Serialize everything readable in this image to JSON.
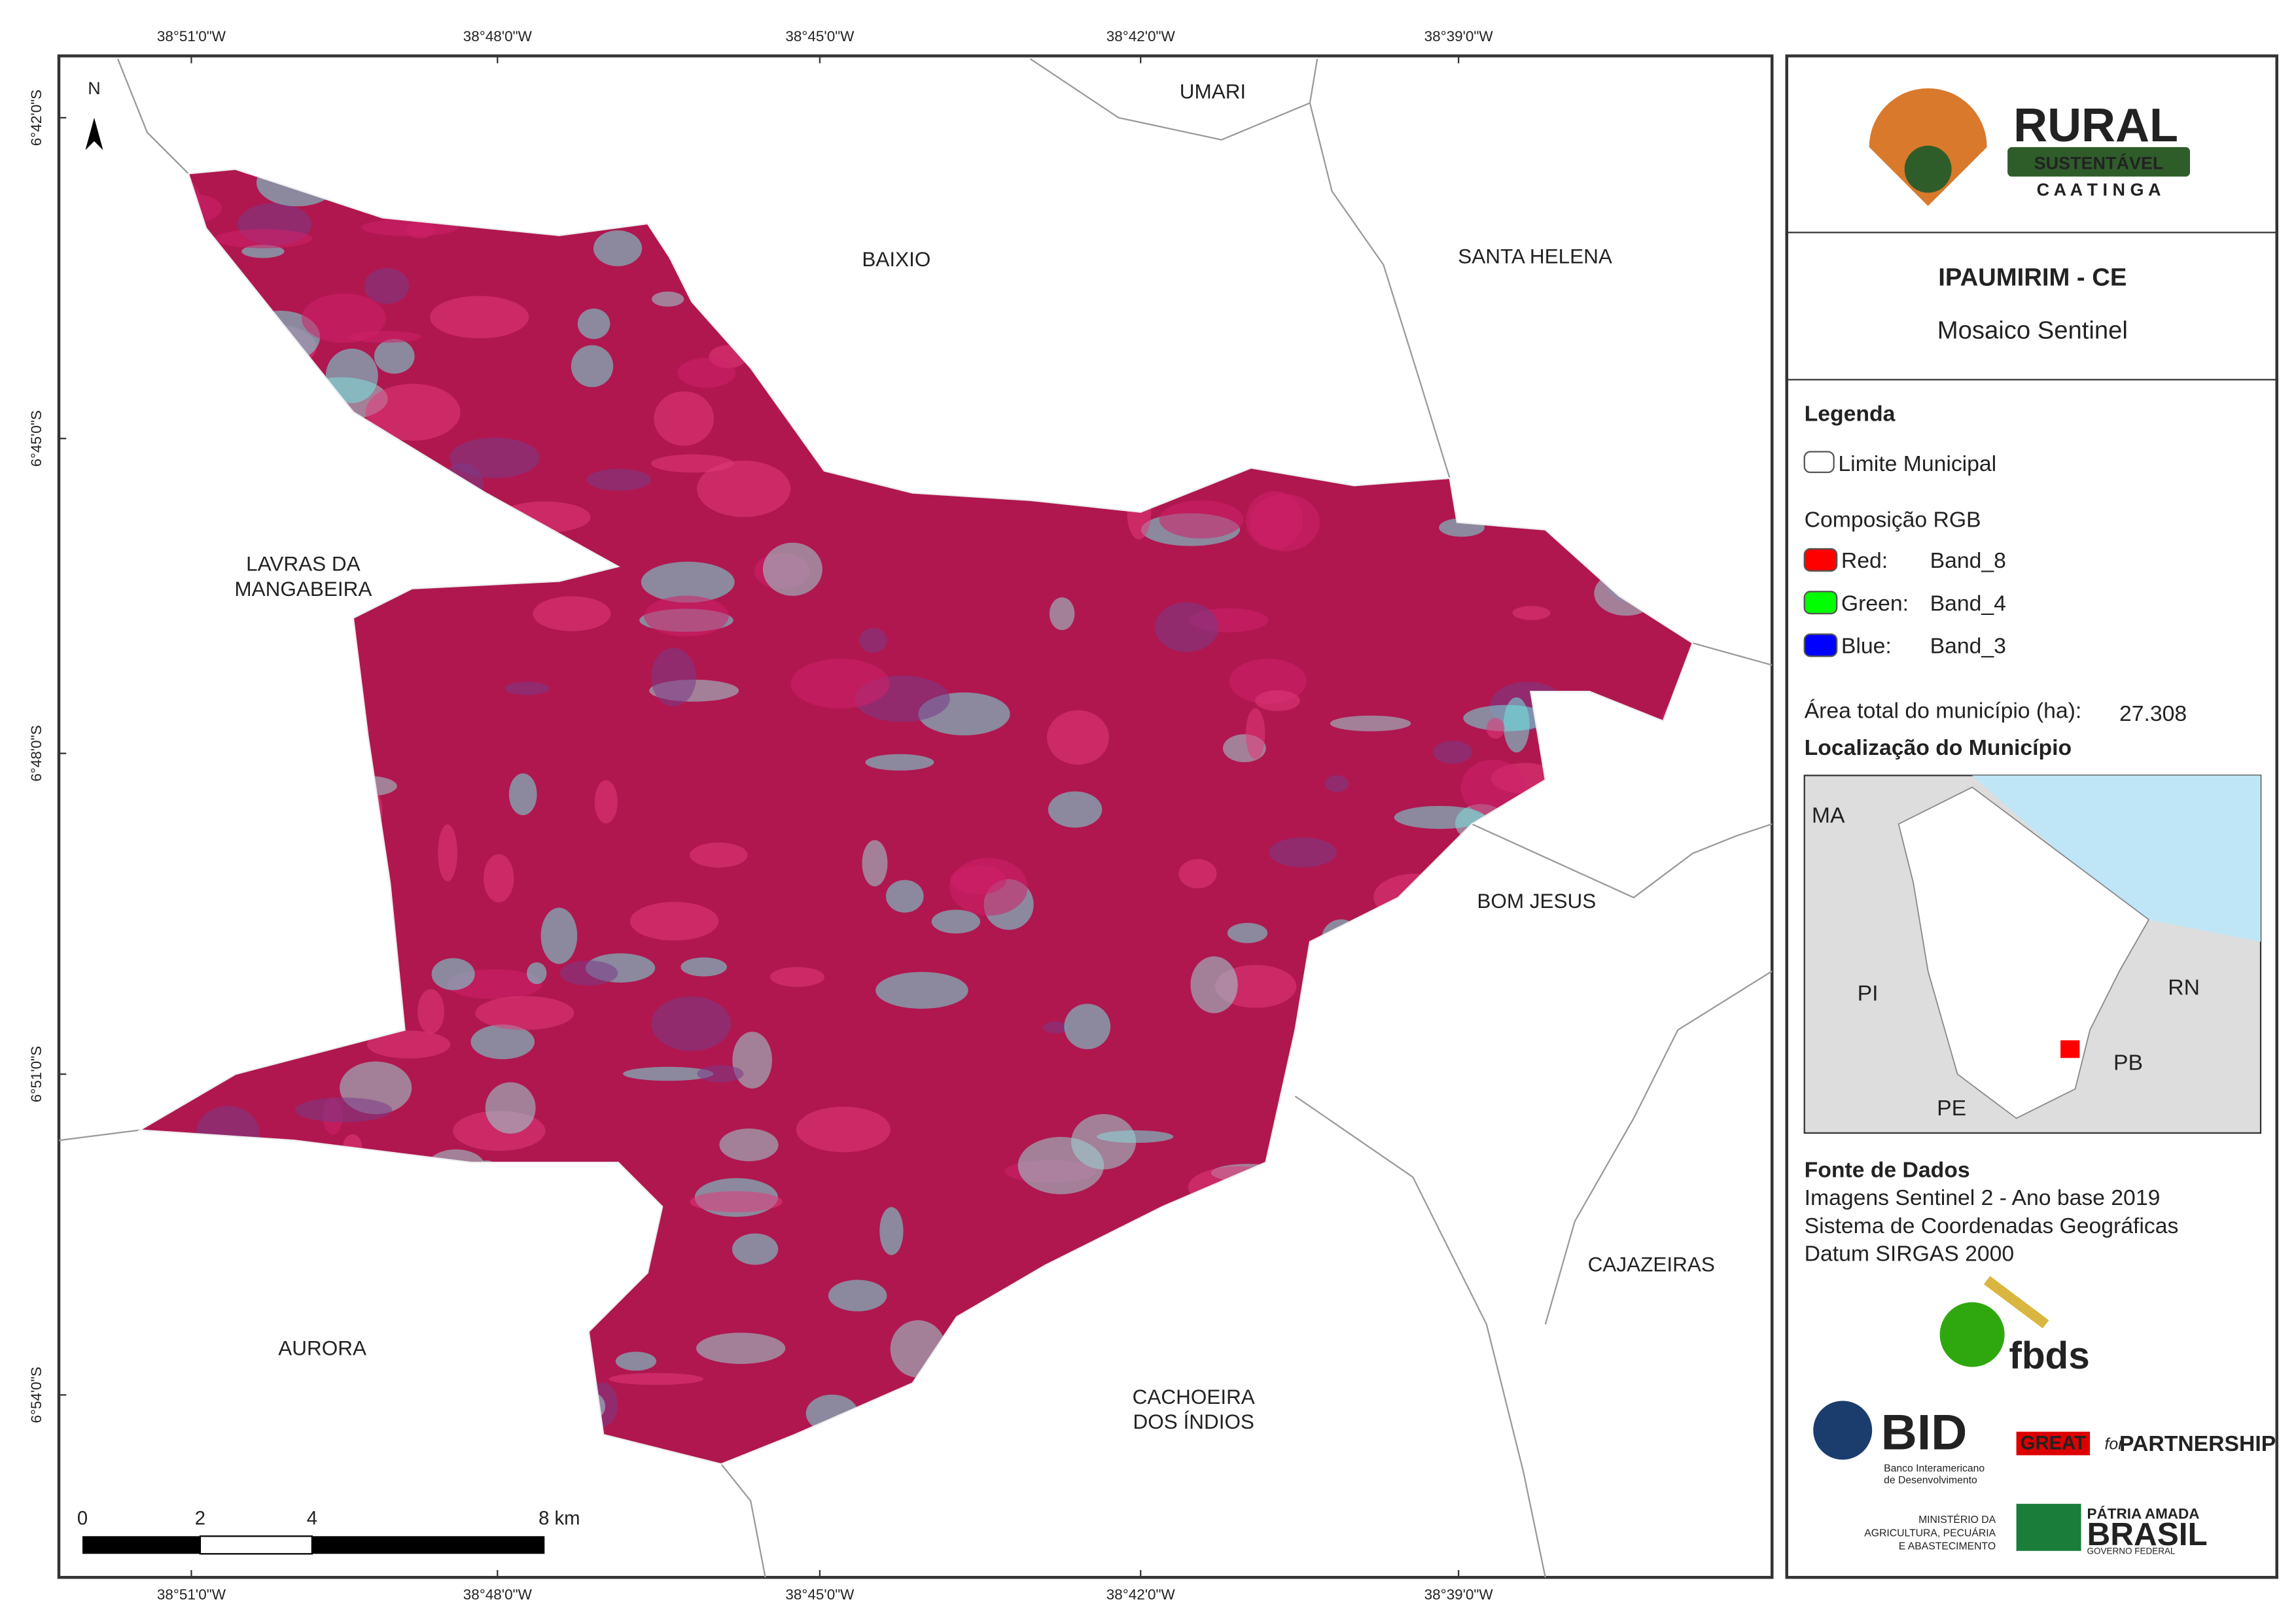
{
  "map": {
    "top_labels": [
      "38°51'0\"W",
      "38°48'0\"W",
      "38°45'0\"W",
      "38°42'0\"W",
      "38°39'0\"W"
    ],
    "bottom_labels": [
      "38°51'0\"W",
      "38°48'0\"W",
      "38°45'0\"W",
      "38°42'0\"W",
      "38°39'0\"W"
    ],
    "left_labels": [
      "6°42'0\"S",
      "6°45'0\"S",
      "6°48'0\"S",
      "6°51'0\"S",
      "6°54'0\"S"
    ],
    "north": "N",
    "neighbors": [
      [
        "UMARI"
      ],
      [
        "BAIXIO"
      ],
      [
        "SANTA HELENA"
      ],
      [
        "LAVRAS DA",
        "MANGABEIRA"
      ],
      [
        "BOM JESUS"
      ],
      [
        "CAJAZEIRAS"
      ],
      [
        "AURORA"
      ],
      [
        "CACHOEIRA",
        "DOS ÍNDIOS"
      ]
    ],
    "scale": [
      "0",
      "2",
      "4",
      "8 km"
    ]
  },
  "panel": {
    "logo": {
      "title": "RURAL",
      "band": "SUSTENTÁVEL",
      "sub": "C A A T I N G A"
    },
    "title": "IPAUMIRIM - CE",
    "subtitle": "Mosaico Sentinel",
    "legend": {
      "heading": "Legenda",
      "boundary": "Limite Municipal",
      "rgb_heading": "Composição RGB",
      "bands": [
        {
          "label": "Red:",
          "band": "Band_8"
        },
        {
          "label": "Green:",
          "band": "Band_4"
        },
        {
          "label": "Blue:",
          "band": "Band_3"
        }
      ]
    },
    "area": {
      "label": "Área total do município (ha):",
      "value": "27.308"
    },
    "location": {
      "heading": "Localização do Município",
      "labels": [
        "MA",
        "PI",
        "RN",
        "PB",
        "PE"
      ]
    },
    "sources": {
      "heading": "Fonte de Dados",
      "lines": [
        "Imagens Sentinel 2 - Ano base 2019",
        "Sistema de Coordenadas Geográficas",
        "Datum SIRGAS 2000"
      ]
    },
    "logos": {
      "fbds": "fbds",
      "bid": "BID",
      "bid_name": [
        "Banco Interamericano",
        "de Desenvolvimento"
      ],
      "great": "GREAT",
      "for": "for",
      "partnership": "PARTNERSHIP",
      "ministry": [
        "MINISTÉRIO DA",
        "AGRICULTURA, PECUÁRIA",
        "E ABASTECIMENTO"
      ],
      "patria": "PÁTRIA AMADA",
      "brasil": "BRASIL",
      "governo": "GOVERNO FEDERAL"
    }
  }
}
